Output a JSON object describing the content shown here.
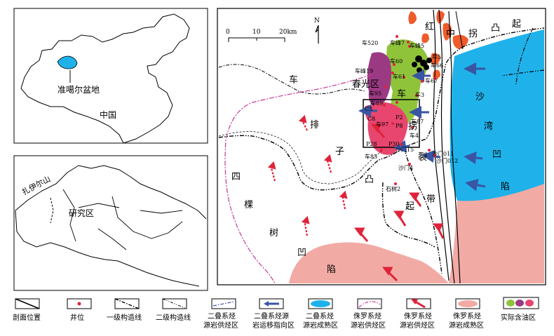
{
  "inset_china": {
    "basin_label": "准噶尔盆地",
    "country_label": "中国"
  },
  "inset_region": {
    "mountain_label": "扎伊尔山",
    "study_label": "研究区"
  },
  "map": {
    "scale": {
      "ticks": [
        "0",
        "10",
        "20km"
      ]
    },
    "north_label": "N",
    "regions": {
      "hong": "红",
      "zhong": "中",
      "guai": "拐",
      "tu": "凸",
      "qi1": "起",
      "che": "车",
      "chunguang": "春光区",
      "pai": "排",
      "zi": "子",
      "tu2": "凸",
      "qi2": "起",
      "si": "四",
      "ke": "棵",
      "shu": "树",
      "ao": "凹",
      "xian": "陷",
      "sha": "沙",
      "wan": "湾",
      "ao2": "凹",
      "xian2": "陷",
      "che2": "车",
      "lie": "裂",
      "dai": "带",
      "guai2": "拐"
    },
    "wells": [
      "车520",
      "车峰7",
      "车峰5",
      "车60",
      "车峰19",
      "车61",
      "车95",
      "车89",
      "车97",
      "车85",
      "车87",
      "车66",
      "车67",
      "车3",
      "车4",
      "沙门011",
      "沙门012",
      "沙门4",
      "石树2",
      "沙门15",
      "P2",
      "P8",
      "P28",
      "P30",
      "C8",
      "C3",
      "车5"
    ]
  },
  "legend": {
    "items": [
      {
        "id": "section",
        "label": "剖面位置"
      },
      {
        "id": "well",
        "label": "井位"
      },
      {
        "id": "fault1",
        "label": "一级构造线"
      },
      {
        "id": "fault2",
        "label": "二级构造线"
      },
      {
        "id": "p-boundary",
        "label1": "二叠系烃",
        "label2": "源岩供烃区"
      },
      {
        "id": "p-migration",
        "label1": "二叠系烃源",
        "label2": "岩运移指向区"
      },
      {
        "id": "p-mature",
        "label1": "二叠系烃",
        "label2": "源岩成熟区"
      },
      {
        "id": "j-boundary",
        "label1": "侏罗系烃",
        "label2": "源岩供烃区"
      },
      {
        "id": "j-migration",
        "label1": "侏罗系烃",
        "label2": "源岩供烃区"
      },
      {
        "id": "j-mature",
        "label1": "侏罗系烃",
        "label2": "源岩成熟区"
      },
      {
        "id": "oil",
        "label": "实际含油区"
      }
    ]
  },
  "colors": {
    "sha_wan_blue": "#1fb2ea",
    "jurassic_pink": "#f2aaa5",
    "oil_green": "#8fc43a",
    "oil_purple": "#9b3a83",
    "oil_red": "#e8466f",
    "red_orange": "#ef5b2b",
    "arrow_blue": "#3a55a3",
    "arrow_red": "#e0233a",
    "boundary_purple": "#c3399a",
    "well_red": "#e0233a"
  }
}
